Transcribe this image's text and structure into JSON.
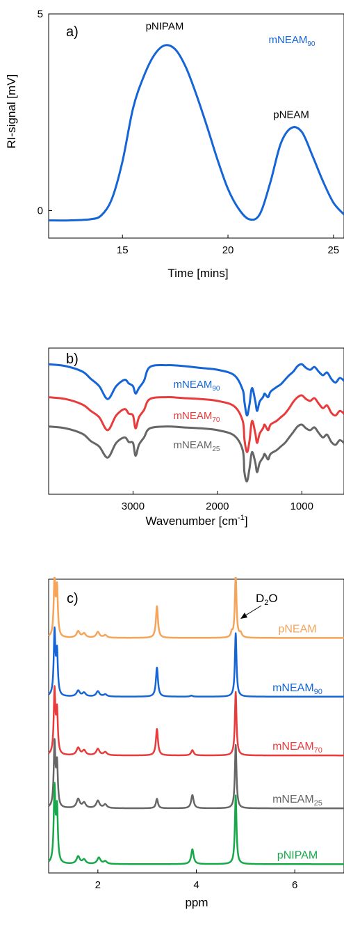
{
  "chart_data": [
    {
      "type": "line",
      "panel_label": "a)",
      "xlabel": "Time [mins]",
      "ylabel": "RI-signal [mV]",
      "xlim": [
        11.5,
        25.5
      ],
      "ylim": [
        -0.7,
        5
      ],
      "xticks": [
        15,
        20,
        25
      ],
      "yticks": [
        0,
        5
      ],
      "legend": {
        "text": "mNEAM",
        "sub": "90",
        "color": "#1565d6",
        "placement": "top-right"
      },
      "annotations": [
        {
          "text": "pNIPAM",
          "x": 17.0,
          "y": 4.6
        },
        {
          "text": "pNEAM",
          "x": 23.0,
          "y": 2.35
        }
      ],
      "series": [
        {
          "color": "#1565d6",
          "x": [
            11.5,
            12.5,
            13.5,
            14.0,
            14.5,
            15.0,
            15.5,
            16.0,
            16.5,
            17.0,
            17.5,
            18.0,
            18.5,
            19.0,
            19.5,
            20.0,
            20.5,
            21.0,
            21.5,
            22.0,
            22.5,
            23.0,
            23.5,
            24.0,
            24.5,
            25.0,
            25.5
          ],
          "y": [
            -0.25,
            -0.25,
            -0.22,
            -0.12,
            0.3,
            1.25,
            2.6,
            3.4,
            3.95,
            4.2,
            4.1,
            3.65,
            2.95,
            2.15,
            1.3,
            0.55,
            0.05,
            -0.22,
            -0.1,
            0.7,
            1.7,
            2.1,
            2.0,
            1.4,
            0.75,
            0.2,
            -0.1
          ]
        }
      ]
    },
    {
      "type": "line",
      "panel_label": "b)",
      "xlabel": "Wavenumber [cm",
      "xlabel_sup": "-1",
      "xlabel_end": "]",
      "xlim": [
        4000,
        500
      ],
      "xticks": [
        3000,
        2000,
        1000
      ],
      "y_ticks_shown": false,
      "series": [
        {
          "label": "mNEAM",
          "sub": "90",
          "color": "#1565d6",
          "x": [
            4000,
            3800,
            3600,
            3500,
            3400,
            3300,
            3200,
            3100,
            3050,
            3000,
            2970,
            2930,
            2870,
            2800,
            2600,
            2400,
            2200,
            2000,
            1800,
            1700,
            1680,
            1650,
            1620,
            1590,
            1550,
            1530,
            1500,
            1460,
            1440,
            1400,
            1370,
            1300,
            1250,
            1200,
            1150,
            1100,
            1050,
            1000,
            950,
            900,
            850,
            800,
            750,
            700,
            650,
            600,
            550,
            500
          ],
          "y": [
            96,
            94,
            88,
            80,
            72,
            58,
            72,
            79,
            75,
            72,
            64,
            70,
            78,
            93,
            95,
            94,
            92,
            90,
            84,
            68,
            55,
            40,
            52,
            70,
            55,
            45,
            55,
            60,
            64,
            60,
            66,
            71,
            74,
            79,
            84,
            88,
            94,
            96,
            92,
            90,
            93,
            88,
            84,
            87,
            80,
            76,
            81,
            78
          ]
        },
        {
          "label": "mNEAM",
          "sub": "70",
          "color": "#e83c3c",
          "x": [
            4000,
            3800,
            3600,
            3500,
            3400,
            3300,
            3200,
            3100,
            3050,
            3000,
            2970,
            2930,
            2870,
            2800,
            2600,
            2400,
            2200,
            2000,
            1800,
            1700,
            1680,
            1650,
            1620,
            1590,
            1550,
            1530,
            1500,
            1460,
            1440,
            1400,
            1370,
            1300,
            1250,
            1200,
            1150,
            1100,
            1050,
            1000,
            950,
            900,
            850,
            800,
            750,
            700,
            650,
            600,
            550,
            500
          ],
          "y": [
            60,
            58,
            52,
            45,
            38,
            24,
            40,
            47,
            42,
            40,
            26,
            38,
            46,
            58,
            60,
            59,
            58,
            56,
            50,
            34,
            14,
            0,
            12,
            34,
            20,
            10,
            20,
            26,
            30,
            24,
            30,
            34,
            38,
            42,
            48,
            55,
            60,
            62,
            58,
            56,
            59,
            53,
            48,
            51,
            43,
            40,
            45,
            42
          ]
        },
        {
          "label": "mNEAM",
          "sub": "25",
          "color": "#666666",
          "x": [
            4000,
            3800,
            3600,
            3500,
            3400,
            3300,
            3200,
            3100,
            3050,
            3000,
            2970,
            2930,
            2870,
            2800,
            2600,
            2400,
            2200,
            2000,
            1800,
            1700,
            1680,
            1650,
            1620,
            1590,
            1550,
            1530,
            1500,
            1460,
            1440,
            1400,
            1370,
            1300,
            1250,
            1200,
            1150,
            1100,
            1050,
            1000,
            950,
            900,
            850,
            800,
            750,
            700,
            650,
            600,
            550,
            500
          ],
          "y": [
            28,
            26,
            20,
            12,
            6,
            -6,
            10,
            16,
            11,
            10,
            -4,
            8,
            16,
            26,
            28,
            27,
            26,
            24,
            18,
            2,
            -22,
            -32,
            -18,
            0,
            -12,
            -22,
            -12,
            -6,
            -2,
            -8,
            -2,
            2,
            6,
            10,
            16,
            22,
            28,
            30,
            26,
            24,
            27,
            21,
            16,
            19,
            11,
            8,
            13,
            10
          ]
        }
      ]
    },
    {
      "type": "line",
      "panel_label": "c)",
      "xlabel": "ppm",
      "xlim": [
        1.0,
        7.0
      ],
      "xticks": [
        2,
        4,
        6
      ],
      "y_ticks_shown": false,
      "annotation": {
        "text": "D",
        "sub": "2",
        "text_end": "O"
      },
      "series": [
        {
          "label": "pNEAM",
          "color": "#f5a45a",
          "offset": 0.8,
          "peaks": [
            [
              1.12,
              1.1,
              0.02
            ],
            [
              1.17,
              0.9,
              0.02
            ],
            [
              1.6,
              0.12,
              0.04
            ],
            [
              1.72,
              0.08,
              0.04
            ],
            [
              2.0,
              0.11,
              0.04
            ],
            [
              2.15,
              0.05,
              0.04
            ],
            [
              3.2,
              0.6,
              0.025
            ],
            [
              4.72,
              0.09,
              0.02
            ],
            [
              4.8,
              1.2,
              0.02
            ],
            [
              4.9,
              0.08,
              0.03
            ]
          ]
        },
        {
          "label": "mNEAM",
          "sub": "90",
          "color": "#1565d6",
          "offset": 0.6,
          "peaks": [
            [
              1.12,
              1.2,
              0.02
            ],
            [
              1.17,
              0.8,
              0.02
            ],
            [
              1.6,
              0.11,
              0.04
            ],
            [
              1.72,
              0.07,
              0.04
            ],
            [
              2.0,
              0.1,
              0.04
            ],
            [
              2.15,
              0.04,
              0.04
            ],
            [
              3.2,
              0.55,
              0.025
            ],
            [
              3.9,
              0.02,
              0.03
            ],
            [
              4.8,
              1.2,
              0.02
            ]
          ]
        },
        {
          "label": "mNEAM",
          "sub": "70",
          "color": "#e83c3c",
          "offset": 0.4,
          "peaks": [
            [
              1.12,
              1.2,
              0.02
            ],
            [
              1.17,
              0.8,
              0.02
            ],
            [
              1.6,
              0.14,
              0.04
            ],
            [
              1.72,
              0.09,
              0.04
            ],
            [
              2.0,
              0.12,
              0.04
            ],
            [
              2.15,
              0.06,
              0.04
            ],
            [
              3.2,
              0.5,
              0.025
            ],
            [
              3.92,
              0.1,
              0.03
            ],
            [
              4.8,
              1.2,
              0.02
            ]
          ]
        },
        {
          "label": "mNEAM",
          "sub": "25",
          "color": "#666666",
          "offset": 0.22,
          "peaks": [
            [
              1.12,
              1.2,
              0.02
            ],
            [
              1.17,
              0.8,
              0.02
            ],
            [
              1.6,
              0.17,
              0.04
            ],
            [
              1.72,
              0.1,
              0.04
            ],
            [
              2.0,
              0.14,
              0.04
            ],
            [
              2.15,
              0.07,
              0.04
            ],
            [
              3.2,
              0.18,
              0.025
            ],
            [
              3.92,
              0.25,
              0.03
            ],
            [
              4.8,
              1.2,
              0.02
            ]
          ]
        },
        {
          "label": "pNIPAM",
          "color": "#18a84c",
          "offset": 0.03,
          "peaks": [
            [
              1.12,
              1.4,
              0.02
            ],
            [
              1.17,
              1.0,
              0.02
            ],
            [
              1.6,
              0.14,
              0.04
            ],
            [
              1.72,
              0.08,
              0.04
            ],
            [
              2.02,
              0.12,
              0.04
            ],
            [
              2.15,
              0.05,
              0.04
            ],
            [
              3.92,
              0.28,
              0.03
            ],
            [
              4.8,
              1.3,
              0.02
            ]
          ]
        }
      ]
    }
  ]
}
